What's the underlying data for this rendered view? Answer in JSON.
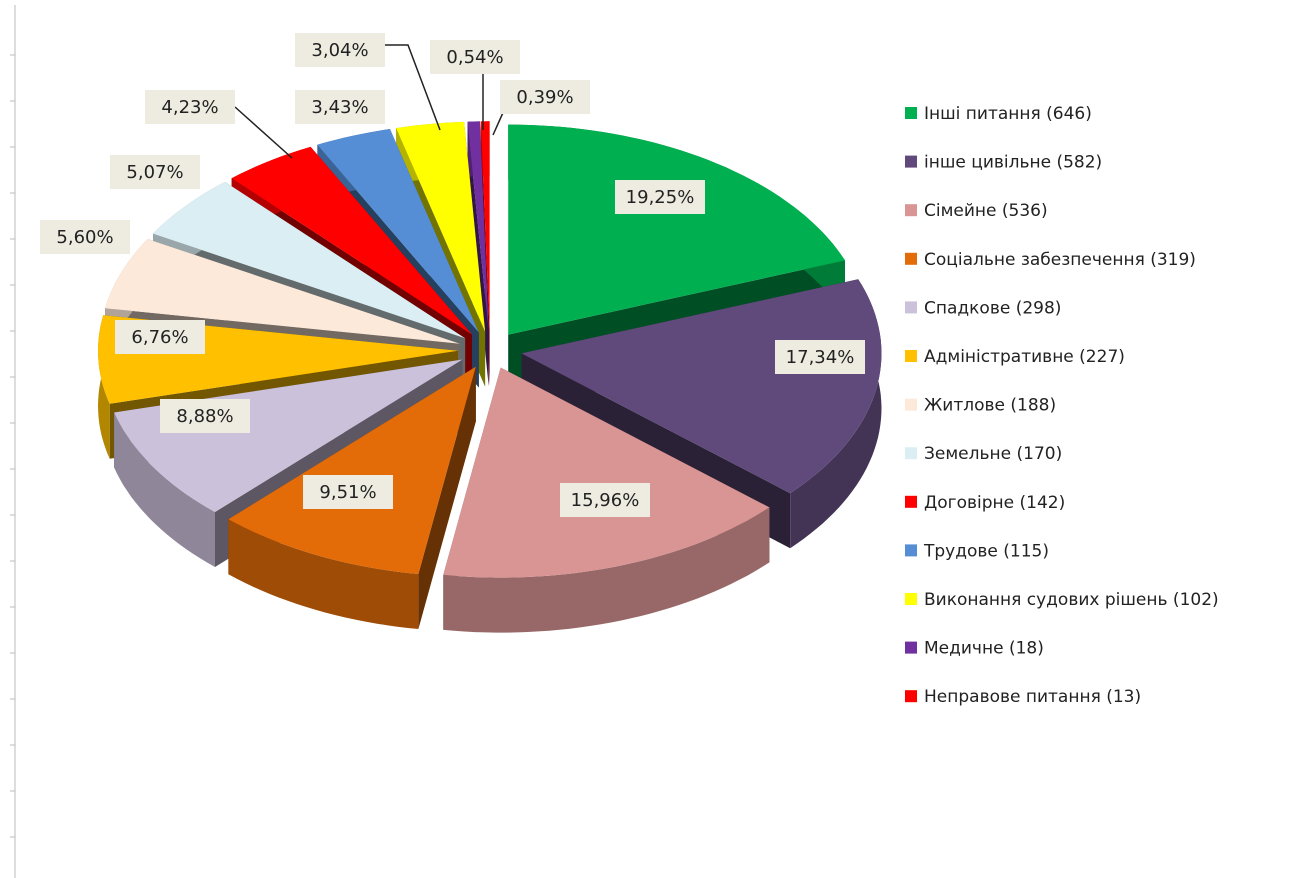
{
  "chart_data": {
    "type": "pie",
    "categories": [
      "Інші питання (646)",
      "інше цивільне (582)",
      "Сімейне (536)",
      "Соціальне забезпечення (319)",
      "Спадкове (298)",
      "Адміністративне (227)",
      "Житлове (188)",
      "Земельне (170)",
      "Договірне (142)",
      "Трудове (115)",
      "Виконання судових рішень (102)",
      "Медичне (18)",
      "Неправове питання (13)"
    ],
    "values": [
      19.25,
      17.34,
      15.96,
      9.51,
      8.88,
      6.76,
      5.6,
      5.07,
      4.23,
      3.43,
      3.04,
      0.54,
      0.39
    ],
    "value_labels": [
      "19,25%",
      "17,34%",
      "15,96%",
      "9,51%",
      "8,88%",
      "6,76%",
      "5,60%",
      "5,07%",
      "4,23%",
      "3,43%",
      "3,04%",
      "0,54%",
      "0,39%"
    ],
    "colors": [
      "#00b050",
      "#604a7b",
      "#d99594",
      "#e36c09",
      "#ccc1da",
      "#ffc000",
      "#fde9d9",
      "#dbeef3",
      "#ff0000",
      "#558ed5",
      "#ffff00",
      "#7030a0",
      "#ff0000"
    ],
    "legend": "right"
  }
}
